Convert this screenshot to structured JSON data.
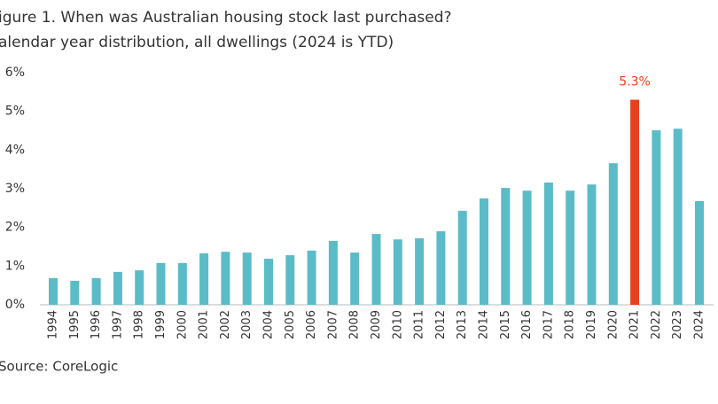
{
  "chart_data": {
    "type": "bar",
    "title": "igure 1. When was Australian housing stock last purchased?",
    "subtitle": "alendar year distribution, all dwellings (2024 is YTD)",
    "source": "Source: CoreLogic",
    "categories": [
      "1994",
      "1995",
      "1996",
      "1997",
      "1998",
      "1999",
      "2000",
      "2001",
      "2002",
      "2003",
      "2004",
      "2005",
      "2006",
      "2007",
      "2008",
      "2009",
      "2010",
      "2011",
      "2012",
      "2013",
      "2014",
      "2015",
      "2016",
      "2017",
      "2018",
      "2019",
      "2020",
      "2021",
      "2022",
      "2023",
      "2024"
    ],
    "values": [
      0.69,
      0.62,
      0.69,
      0.85,
      0.89,
      1.08,
      1.08,
      1.33,
      1.37,
      1.35,
      1.19,
      1.28,
      1.4,
      1.65,
      1.35,
      1.83,
      1.69,
      1.72,
      1.9,
      2.43,
      2.75,
      3.02,
      2.95,
      3.16,
      2.95,
      3.11,
      3.66,
      5.3,
      4.51,
      4.55,
      2.68
    ],
    "value_labels": [
      null,
      null,
      null,
      null,
      null,
      null,
      null,
      null,
      null,
      null,
      null,
      null,
      null,
      null,
      null,
      null,
      null,
      null,
      null,
      null,
      null,
      null,
      null,
      null,
      null,
      null,
      null,
      "5.3%",
      null,
      null,
      null
    ],
    "colors": [
      "#5bbcc8",
      "#5bbcc8",
      "#5bbcc8",
      "#5bbcc8",
      "#5bbcc8",
      "#5bbcc8",
      "#5bbcc8",
      "#5bbcc8",
      "#5bbcc8",
      "#5bbcc8",
      "#5bbcc8",
      "#5bbcc8",
      "#5bbcc8",
      "#5bbcc8",
      "#5bbcc8",
      "#5bbcc8",
      "#5bbcc8",
      "#5bbcc8",
      "#5bbcc8",
      "#5bbcc8",
      "#5bbcc8",
      "#5bbcc8",
      "#5bbcc8",
      "#5bbcc8",
      "#5bbcc8",
      "#5bbcc8",
      "#5bbcc8",
      "#e8401c",
      "#5bbcc8",
      "#5bbcc8",
      "#5bbcc8"
    ],
    "label_color": "#e8401c",
    "ylim": [
      0,
      6
    ],
    "yticks": [
      {
        "value": 0,
        "label": "0%"
      },
      {
        "value": 1,
        "label": "1%"
      },
      {
        "value": 2,
        "label": "2%"
      },
      {
        "value": 3,
        "label": "3%"
      },
      {
        "value": 4,
        "label": "4%"
      },
      {
        "value": 5,
        "label": "5%"
      },
      {
        "value": 6,
        "label": "6%"
      }
    ],
    "grid": false
  }
}
